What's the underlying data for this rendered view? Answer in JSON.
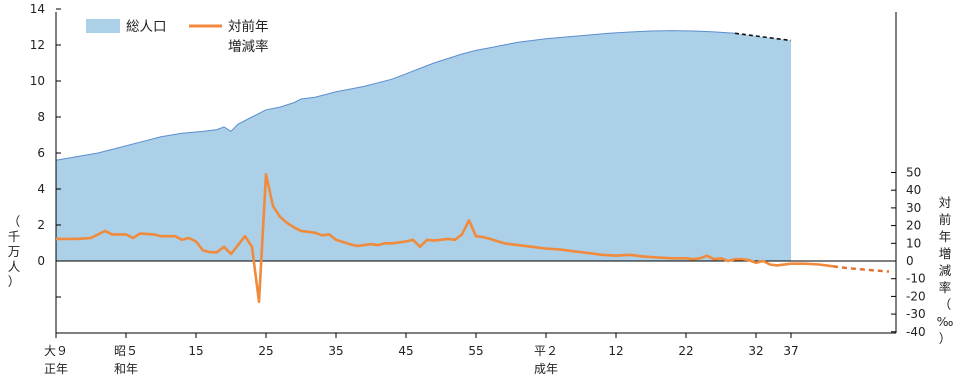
{
  "chart_data": {
    "type": "area",
    "series": [
      {
        "name": "総人口",
        "axis": "left",
        "color": "#acd0e8",
        "line_color": "#5b8ed0",
        "unit_label": [
          "（",
          "千",
          "万",
          "人",
          "）"
        ],
        "points": [
          [
            1920,
            5.6
          ],
          [
            1923,
            5.8
          ],
          [
            1926,
            6.0
          ],
          [
            1929,
            6.3
          ],
          [
            1932,
            6.6
          ],
          [
            1935,
            6.9
          ],
          [
            1938,
            7.1
          ],
          [
            1941,
            7.2
          ],
          [
            1943,
            7.3
          ],
          [
            1944,
            7.45
          ],
          [
            1945,
            7.2
          ],
          [
            1946,
            7.6
          ],
          [
            1948,
            8.0
          ],
          [
            1949,
            8.2
          ],
          [
            1950,
            8.4
          ],
          [
            1952,
            8.55
          ],
          [
            1954,
            8.8
          ],
          [
            1955,
            9.0
          ],
          [
            1957,
            9.1
          ],
          [
            1959,
            9.3
          ],
          [
            1960,
            9.4
          ],
          [
            1962,
            9.55
          ],
          [
            1964,
            9.7
          ],
          [
            1966,
            9.9
          ],
          [
            1968,
            10.1
          ],
          [
            1970,
            10.4
          ],
          [
            1972,
            10.7
          ],
          [
            1974,
            11.0
          ],
          [
            1976,
            11.25
          ],
          [
            1978,
            11.5
          ],
          [
            1980,
            11.7
          ],
          [
            1982,
            11.85
          ],
          [
            1984,
            12.0
          ],
          [
            1986,
            12.15
          ],
          [
            1988,
            12.25
          ],
          [
            1990,
            12.35
          ],
          [
            1993,
            12.45
          ],
          [
            1996,
            12.55
          ],
          [
            1999,
            12.65
          ],
          [
            2002,
            12.72
          ],
          [
            2005,
            12.78
          ],
          [
            2008,
            12.8
          ],
          [
            2011,
            12.78
          ],
          [
            2014,
            12.73
          ],
          [
            2017,
            12.65
          ]
        ],
        "projection": [
          [
            2017,
            12.65
          ],
          [
            2020,
            12.5
          ],
          [
            2025,
            12.25
          ]
        ]
      },
      {
        "name": "対前年増減率",
        "name_lines": [
          "対前年",
          "増減率"
        ],
        "axis": "right",
        "color": "#f08a3c",
        "unit_label": [
          "対",
          "前",
          "年",
          "増",
          "減",
          "率",
          "（",
          "‰",
          "）"
        ],
        "points": [
          [
            1920,
            12.5
          ],
          [
            1923,
            12.5
          ],
          [
            1925,
            13
          ],
          [
            1927,
            17
          ],
          [
            1928,
            15
          ],
          [
            1930,
            15
          ],
          [
            1931,
            13
          ],
          [
            1932,
            15.5
          ],
          [
            1934,
            15
          ],
          [
            1935,
            14
          ],
          [
            1937,
            14
          ],
          [
            1938,
            12
          ],
          [
            1939,
            13
          ],
          [
            1940,
            11
          ],
          [
            1941,
            6
          ],
          [
            1942,
            5
          ],
          [
            1943,
            5
          ],
          [
            1944,
            8
          ],
          [
            1945,
            4
          ],
          [
            1947,
            14
          ],
          [
            1948,
            8
          ],
          [
            1949,
            -23
          ],
          [
            1950,
            49
          ],
          [
            1951,
            31
          ],
          [
            1952,
            25
          ],
          [
            1953,
            21.5
          ],
          [
            1954,
            19
          ],
          [
            1955,
            17
          ],
          [
            1957,
            16
          ],
          [
            1958,
            14.5
          ],
          [
            1959,
            15
          ],
          [
            1960,
            12
          ],
          [
            1962,
            9.5
          ],
          [
            1963,
            8.5
          ],
          [
            1964,
            9
          ],
          [
            1965,
            9.5
          ],
          [
            1966,
            9
          ],
          [
            1967,
            10
          ],
          [
            1968,
            10
          ],
          [
            1970,
            11
          ],
          [
            1971,
            12
          ],
          [
            1972,
            8
          ],
          [
            1973,
            12
          ],
          [
            1974,
            11.5
          ],
          [
            1976,
            12.5
          ],
          [
            1977,
            12
          ],
          [
            1978,
            15
          ],
          [
            1979,
            23
          ],
          [
            1980,
            14
          ],
          [
            1981,
            13.5
          ],
          [
            1982,
            12.5
          ],
          [
            1984,
            10
          ],
          [
            1986,
            9
          ],
          [
            1988,
            8
          ],
          [
            1990,
            7
          ],
          [
            1992,
            6.5
          ],
          [
            1994,
            5.5
          ],
          [
            1996,
            4.5
          ],
          [
            1998,
            3.5
          ],
          [
            2000,
            3
          ],
          [
            2002,
            3.5
          ],
          [
            2004,
            2.5
          ],
          [
            2006,
            2
          ],
          [
            2008,
            1.5
          ],
          [
            2010,
            1.5
          ],
          [
            2011,
            1
          ],
          [
            2012,
            1.5
          ],
          [
            2013,
            3
          ],
          [
            2014,
            1
          ],
          [
            2015,
            1.5
          ],
          [
            2016,
            0
          ],
          [
            2017,
            1
          ],
          [
            2018,
            1
          ],
          [
            2019,
            0.5
          ],
          [
            2020,
            -1
          ],
          [
            2021,
            0
          ],
          [
            2022,
            -2
          ],
          [
            2023,
            -2.5
          ],
          [
            2025,
            -1.5
          ],
          [
            2027,
            -1.5
          ],
          [
            2029,
            -2
          ],
          [
            2031,
            -3
          ]
        ],
        "projection": [
          [
            2031,
            -3
          ],
          [
            2033,
            -4
          ],
          [
            2036,
            -5
          ],
          [
            2039,
            -6
          ]
        ]
      }
    ],
    "x_range": [
      1920,
      2040
    ],
    "x_ticks": [
      {
        "x": 1920,
        "label": [
          "大９",
          "正年"
        ]
      },
      {
        "x": 1930,
        "label": [
          "昭５",
          "和年"
        ]
      },
      {
        "x": 1940,
        "label": [
          "15"
        ]
      },
      {
        "x": 1950,
        "label": [
          "25"
        ]
      },
      {
        "x": 1960,
        "label": [
          "35"
        ]
      },
      {
        "x": 1970,
        "label": [
          "45"
        ]
      },
      {
        "x": 1980,
        "label": [
          "55"
        ]
      },
      {
        "x": 1990,
        "label": [
          "平２",
          "成年"
        ]
      },
      {
        "x": 2000,
        "label": [
          "12"
        ]
      },
      {
        "x": 2010,
        "label": [
          "22"
        ]
      },
      {
        "x": 2020,
        "label": [
          "32"
        ]
      },
      {
        "x": 2025,
        "label": [
          "37"
        ]
      }
    ],
    "left_axis": {
      "range": [
        -4,
        14
      ],
      "ticks": [
        0,
        2,
        4,
        6,
        8,
        10,
        12,
        14
      ]
    },
    "right_axis": {
      "range": [
        -40,
        50
      ],
      "ticks": [
        50,
        40,
        30,
        20,
        10,
        0,
        -10,
        -20,
        -30,
        -40
      ]
    },
    "legend_position": "top-left",
    "grid": false
  }
}
